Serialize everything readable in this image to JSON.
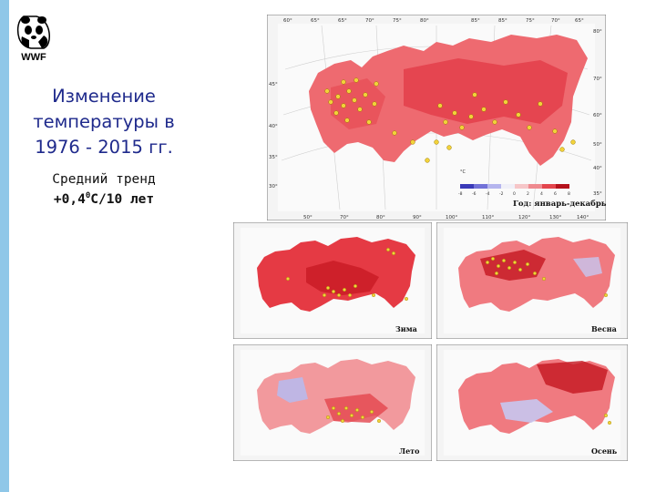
{
  "logo": {
    "text": "WWF"
  },
  "slide": {
    "title": "Изменение температуры в 1976 - 2015 гг.",
    "subtitle_line1": "Средний тренд",
    "trend_prefix": "+0,4",
    "trend_degree": "0",
    "trend_suffix": "C/10 лет"
  },
  "maps": {
    "annual": {
      "label": "Год: январь-декабрь",
      "legend_unit": "°C",
      "legend_ticks": [
        "-8",
        "-6",
        "-4",
        "-2",
        "0",
        "2",
        "4",
        "6",
        "8"
      ],
      "lon_top": [
        "60°",
        "65°",
        "65°",
        "70°",
        "75°",
        "80°",
        "85°",
        "85°",
        "75°",
        "70°",
        "65°"
      ],
      "lon_bottom": [
        "50°",
        "70°",
        "80°",
        "90°",
        "100°",
        "110°",
        "120°",
        "130°",
        "140°"
      ],
      "lat_left": [
        "45°",
        "40°",
        "35°",
        "30°"
      ],
      "lat_right": [
        "80°",
        "70°",
        "60°",
        "50°",
        "40°",
        "35°"
      ]
    },
    "winter": {
      "label": "Зима"
    },
    "spring": {
      "label": "Весна"
    },
    "summer": {
      "label": "Лето"
    },
    "autumn": {
      "label": "Осень"
    },
    "small_lon_bottom": [
      "70°",
      "80°",
      "90°",
      "100°",
      "110°",
      "120°",
      "130°"
    ],
    "small_lon_top": [
      "60°",
      "70°",
      "80°",
      "90°",
      "100°",
      "70°",
      "60°"
    ],
    "small_lat_right": [
      "70°",
      "60°",
      "50°",
      "40°"
    ],
    "small_lat_left": [
      "45°",
      "40°",
      "35°"
    ]
  },
  "colors": {
    "accent_bar": "#8fc7e8",
    "title": "#1f2a8c",
    "warm": "#e8424a",
    "cool": "#8e8fe0",
    "station": "#f2d23a"
  }
}
